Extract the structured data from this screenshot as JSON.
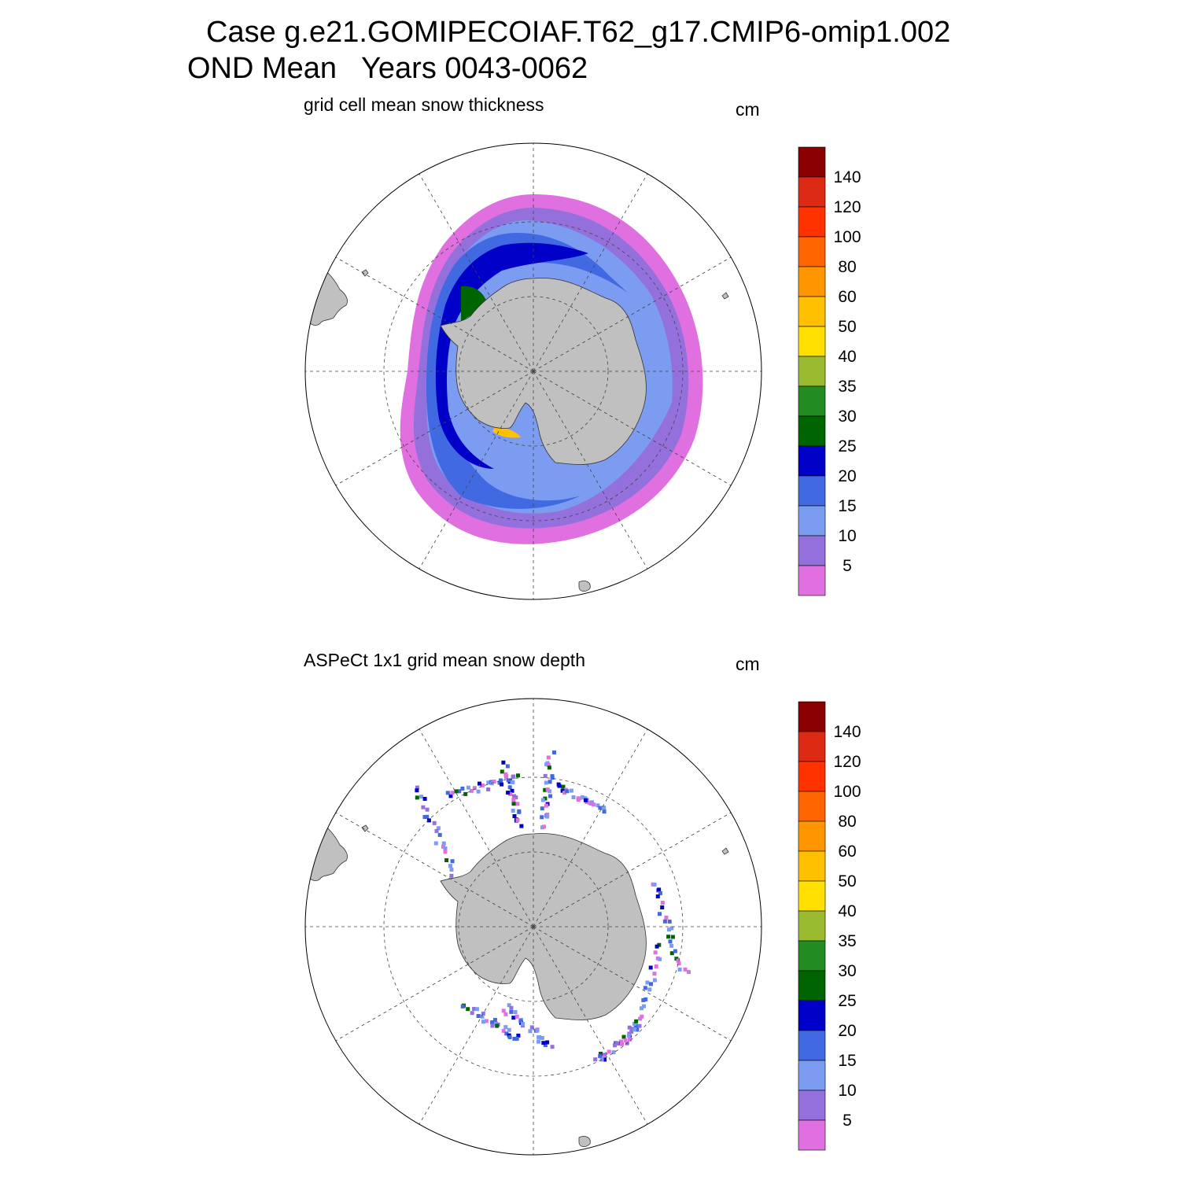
{
  "title": {
    "line1": "Case g.e21.GOMIPECOIAF.T62_g17.CMIP6-omip1.002",
    "line2": "OND Mean   Years 0043-0062"
  },
  "panels": [
    {
      "subtitle": "grid cell mean snow thickness",
      "units": "cm"
    },
    {
      "subtitle": "ASPeCt 1x1 grid mean snow depth",
      "units": "cm"
    }
  ],
  "colorbar": {
    "labels": [
      "5",
      "10",
      "15",
      "20",
      "25",
      "30",
      "35",
      "40",
      "50",
      "60",
      "80",
      "100",
      "120",
      "140"
    ],
    "colors": [
      "#e070e0",
      "#9370db",
      "#7b9cf0",
      "#4169e1",
      "#0000c8",
      "#006400",
      "#228b22",
      "#9aba30",
      "#ffe000",
      "#ffc000",
      "#ff9600",
      "#ff6400",
      "#ff3200",
      "#dc2a14",
      "#8b0000"
    ]
  },
  "map_colors": {
    "land": "#c0c0c0",
    "ocean": "#ffffff",
    "grid": "#444444"
  }
}
